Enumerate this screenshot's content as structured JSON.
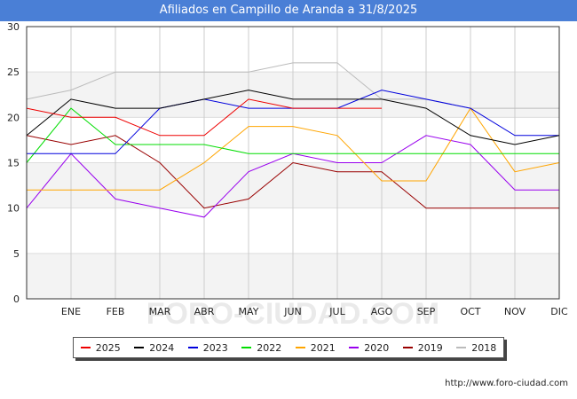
{
  "header": {
    "title": "Afiliados en Campillo de Aranda a 31/8/2025"
  },
  "footer": {
    "url": "http://www.foro-ciudad.com"
  },
  "watermark": "FORO-CIUDAD.COM",
  "chart_data": {
    "type": "line",
    "title": "Afiliados en Campillo de Aranda a 31/8/2025",
    "xlabel": "",
    "ylabel": "",
    "categories": [
      "",
      "ENE",
      "FEB",
      "MAR",
      "ABR",
      "MAY",
      "JUN",
      "JUL",
      "AGO",
      "SEP",
      "OCT",
      "NOV",
      "DIC"
    ],
    "ylim": [
      0,
      30
    ],
    "yticks": [
      0,
      5,
      10,
      15,
      20,
      25,
      30
    ],
    "grid": true,
    "legend_position": "bottom",
    "series": [
      {
        "name": "2025",
        "color": "#ee0000",
        "values": [
          21,
          20,
          20,
          18,
          18,
          22,
          21,
          21,
          21,
          null,
          null,
          null,
          null
        ]
      },
      {
        "name": "2024",
        "color": "#000000",
        "values": [
          18,
          22,
          21,
          21,
          22,
          23,
          22,
          22,
          22,
          21,
          18,
          17,
          18
        ]
      },
      {
        "name": "2023",
        "color": "#0000dd",
        "values": [
          16,
          16,
          16,
          21,
          22,
          21,
          21,
          21,
          23,
          22,
          21,
          18,
          18
        ]
      },
      {
        "name": "2022",
        "color": "#00dd00",
        "values": [
          15,
          21,
          17,
          17,
          17,
          16,
          16,
          16,
          16,
          16,
          16,
          16,
          16
        ]
      },
      {
        "name": "2021",
        "color": "#ffa500",
        "values": [
          12,
          12,
          12,
          12,
          15,
          19,
          19,
          18,
          13,
          13,
          21,
          14,
          15
        ]
      },
      {
        "name": "2020",
        "color": "#9900ee",
        "values": [
          10,
          16,
          11,
          10,
          9,
          14,
          16,
          15,
          15,
          18,
          17,
          12,
          12
        ]
      },
      {
        "name": "2019",
        "color": "#990000",
        "values": [
          18,
          17,
          18,
          15,
          10,
          11,
          15,
          14,
          14,
          10,
          10,
          10,
          10
        ]
      },
      {
        "name": "2018",
        "color": "#bbbbbb",
        "values": [
          22,
          23,
          25,
          25,
          25,
          25,
          26,
          26,
          22,
          22,
          21,
          21,
          21
        ]
      }
    ]
  }
}
